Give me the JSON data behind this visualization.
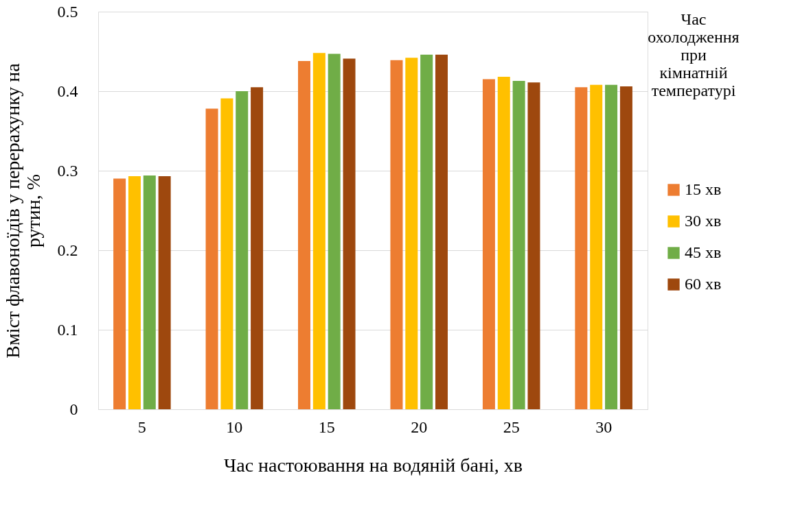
{
  "chart_data": {
    "type": "bar",
    "xlabel": "Час настоювання на водяній бані, хв",
    "ylabel": "Вміст флавоноїдів у перерахунку на рутин, %",
    "legend_title": "Час охолодження при кімнатній температурі",
    "categories": [
      "5",
      "10",
      "15",
      "20",
      "25",
      "30"
    ],
    "series": [
      {
        "name": "15 хв",
        "color": "#ed7d31",
        "values": [
          0.29,
          0.378,
          0.438,
          0.439,
          0.415,
          0.405
        ]
      },
      {
        "name": "30 хв",
        "color": "#ffc000",
        "values": [
          0.293,
          0.391,
          0.448,
          0.442,
          0.418,
          0.408
        ]
      },
      {
        "name": "45 хв",
        "color": "#70ad47",
        "values": [
          0.294,
          0.4,
          0.447,
          0.446,
          0.413,
          0.408
        ]
      },
      {
        "name": "60 хв",
        "color": "#9e480e",
        "values": [
          0.293,
          0.405,
          0.441,
          0.446,
          0.411,
          0.406
        ]
      }
    ],
    "ylim": [
      0,
      0.5
    ],
    "yticks": [
      0,
      0.1,
      0.2,
      0.3,
      0.4,
      0.5
    ],
    "grid": "y",
    "legend": "right"
  }
}
